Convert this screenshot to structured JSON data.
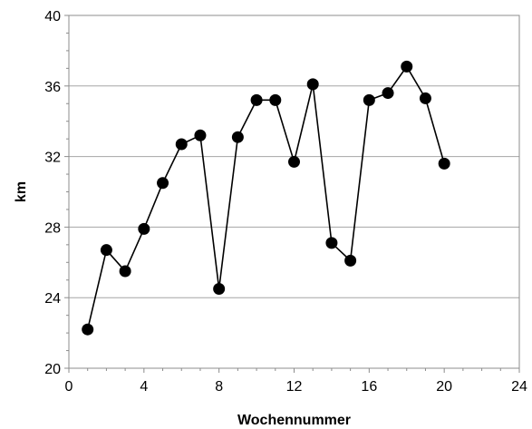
{
  "chart_data": {
    "type": "line",
    "title": "",
    "xlabel": "Wochennummer",
    "ylabel": "km",
    "xlim": [
      0,
      24
    ],
    "ylim": [
      20,
      40
    ],
    "xticks": [
      0,
      4,
      8,
      12,
      16,
      20,
      24
    ],
    "yticks": [
      20,
      24,
      28,
      32,
      36,
      40
    ],
    "xtick_labels": [
      "0",
      "4",
      "8",
      "12",
      "16",
      "20",
      "24"
    ],
    "ytick_labels": [
      "20",
      "24",
      "28",
      "32",
      "36",
      "40"
    ],
    "grid": "horizontal",
    "series": [
      {
        "marker": "filled-circle",
        "color": "#000000",
        "x": [
          1,
          2,
          3,
          4,
          5,
          6,
          7,
          8,
          9,
          10,
          11,
          12,
          13,
          14,
          15,
          16,
          17,
          18,
          19,
          20
        ],
        "y": [
          22.2,
          26.7,
          25.5,
          27.9,
          30.5,
          32.7,
          33.2,
          24.5,
          33.1,
          35.2,
          35.2,
          31.7,
          36.1,
          27.1,
          26.1,
          35.2,
          35.6,
          37.1,
          35.3,
          31.6
        ]
      }
    ]
  }
}
